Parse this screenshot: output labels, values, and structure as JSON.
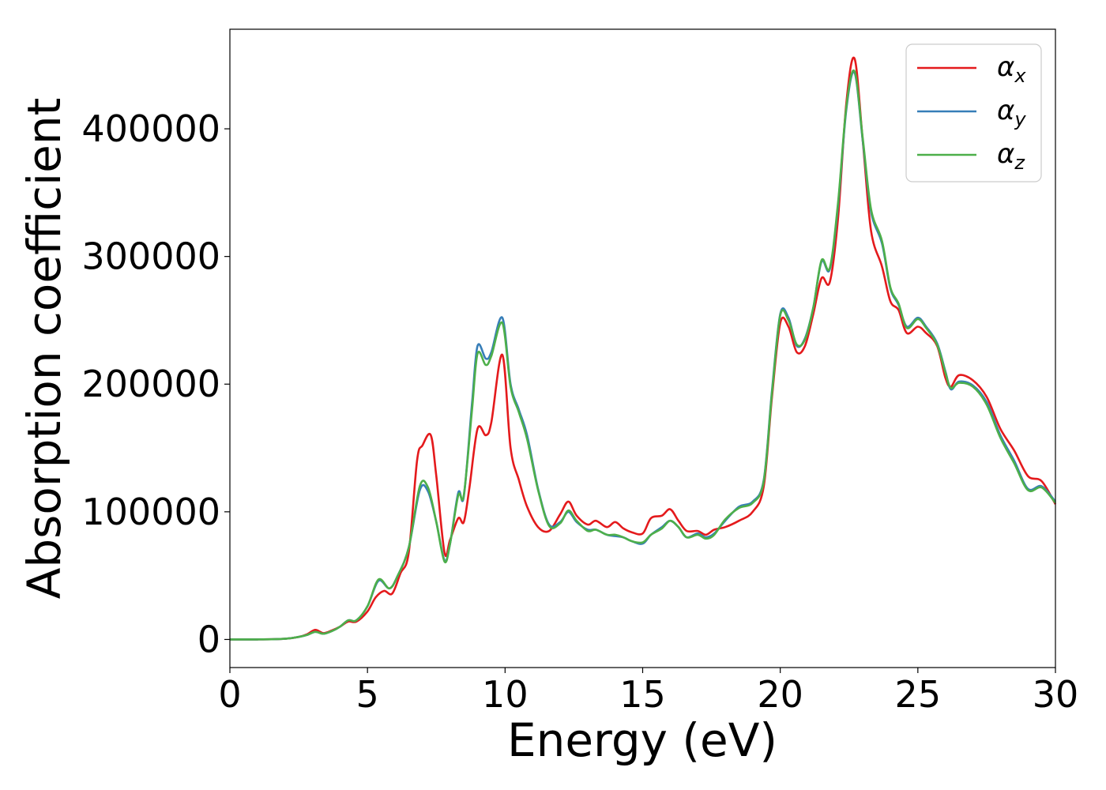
{
  "chart_data": {
    "type": "line",
    "title": "",
    "xlabel": "Energy (eV)",
    "ylabel": "Absorption coefficient",
    "xlim": [
      0,
      30
    ],
    "ylim": [
      -22000,
      478000
    ],
    "xticks": [
      0,
      5,
      10,
      15,
      20,
      25,
      30
    ],
    "xtick_labels": [
      "0",
      "5",
      "10",
      "15",
      "20",
      "25",
      "30"
    ],
    "yticks": [
      0,
      100000,
      200000,
      300000,
      400000
    ],
    "ytick_labels": [
      "0",
      "100000",
      "200000",
      "300000",
      "400000"
    ],
    "grid": false,
    "legend_position": "top-right",
    "series": [
      {
        "name": "αx",
        "label_main": "α",
        "label_sub": "x",
        "color": "#e41a1c",
        "x": [
          0,
          1,
          2,
          2.5,
          2.8,
          3.1,
          3.4,
          3.7,
          4.0,
          4.3,
          4.6,
          5.0,
          5.3,
          5.6,
          5.9,
          6.2,
          6.5,
          6.8,
          7.0,
          7.3,
          7.5,
          7.8,
          8.0,
          8.3,
          8.5,
          8.7,
          9.0,
          9.3,
          9.5,
          9.9,
          10.2,
          10.5,
          10.8,
          11.2,
          11.6,
          12.0,
          12.3,
          12.6,
          13.0,
          13.3,
          13.7,
          14.0,
          14.3,
          14.6,
          15.0,
          15.3,
          15.7,
          16.0,
          16.3,
          16.6,
          17.0,
          17.3,
          17.6,
          18.0,
          18.5,
          19.0,
          19.4,
          19.7,
          20.0,
          20.3,
          20.6,
          20.9,
          21.2,
          21.5,
          21.8,
          22.1,
          22.4,
          22.7,
          23.0,
          23.3,
          23.7,
          24.0,
          24.3,
          24.6,
          25.0,
          25.3,
          25.7,
          26.0,
          26.2,
          26.5,
          27.0,
          27.5,
          28.0,
          28.5,
          29.0,
          29.5,
          30.0
        ],
        "y": [
          0,
          0,
          500,
          2000,
          4000,
          7500,
          5000,
          7000,
          10000,
          14000,
          14000,
          22000,
          33000,
          38000,
          36000,
          52000,
          68000,
          140000,
          152000,
          160000,
          128000,
          68000,
          78000,
          95000,
          92000,
          118000,
          165000,
          160000,
          170000,
          223000,
          150000,
          125000,
          104000,
          88000,
          85000,
          98000,
          108000,
          97000,
          90000,
          93000,
          88000,
          92000,
          87000,
          84000,
          83000,
          95000,
          97000,
          102000,
          93000,
          85000,
          85000,
          82000,
          86000,
          88000,
          93000,
          100000,
          120000,
          190000,
          248000,
          245000,
          225000,
          230000,
          255000,
          283000,
          280000,
          330000,
          420000,
          455000,
          390000,
          320000,
          292000,
          265000,
          258000,
          240000,
          245000,
          240000,
          230000,
          205000,
          198000,
          207000,
          203000,
          190000,
          165000,
          148000,
          128000,
          124000,
          106000
        ]
      },
      {
        "name": "αy",
        "label_main": "α",
        "label_sub": "y",
        "color": "#377eb8",
        "x": [
          0,
          1,
          2,
          2.5,
          2.8,
          3.1,
          3.4,
          3.7,
          4.0,
          4.3,
          4.6,
          5.0,
          5.4,
          5.8,
          6.1,
          6.5,
          6.9,
          7.2,
          7.5,
          7.8,
          8.0,
          8.3,
          8.5,
          8.8,
          9.0,
          9.3,
          9.5,
          9.9,
          10.2,
          10.5,
          10.8,
          11.2,
          11.6,
          12.0,
          12.3,
          12.6,
          13.0,
          13.3,
          13.7,
          14.0,
          14.3,
          14.6,
          15.0,
          15.3,
          15.7,
          16.0,
          16.3,
          16.6,
          17.0,
          17.3,
          17.6,
          18.0,
          18.5,
          19.0,
          19.4,
          19.7,
          20.0,
          20.3,
          20.6,
          20.9,
          21.2,
          21.5,
          21.8,
          22.1,
          22.4,
          22.7,
          23.0,
          23.3,
          23.7,
          24.0,
          24.3,
          24.6,
          25.0,
          25.3,
          25.7,
          26.0,
          26.2,
          26.5,
          27.0,
          27.5,
          28.0,
          28.5,
          29.0,
          29.5,
          30.0
        ],
        "y": [
          0,
          0,
          500,
          2000,
          3500,
          6000,
          4500,
          6500,
          10000,
          15000,
          15000,
          26000,
          46000,
          40000,
          50000,
          72000,
          117000,
          116000,
          92000,
          62000,
          75000,
          115000,
          112000,
          185000,
          230000,
          220000,
          225000,
          252000,
          200000,
          180000,
          160000,
          118000,
          90000,
          92000,
          100000,
          92000,
          86000,
          86000,
          82000,
          81000,
          80000,
          77000,
          75000,
          82000,
          88000,
          93000,
          88000,
          80000,
          83000,
          80000,
          83000,
          93000,
          104000,
          108000,
          125000,
          195000,
          255000,
          252000,
          230000,
          236000,
          260000,
          296000,
          290000,
          340000,
          415000,
          444000,
          390000,
          335000,
          310000,
          275000,
          262000,
          245000,
          252000,
          245000,
          232000,
          210000,
          196000,
          202000,
          199000,
          186000,
          160000,
          140000,
          118000,
          120000,
          108000
        ]
      },
      {
        "name": "αz",
        "label_main": "α",
        "label_sub": "z",
        "color": "#4daf4a",
        "x": [
          0,
          1,
          2,
          2.5,
          2.8,
          3.1,
          3.4,
          3.7,
          4.0,
          4.3,
          4.6,
          5.0,
          5.4,
          5.8,
          6.1,
          6.5,
          6.9,
          7.2,
          7.5,
          7.8,
          8.0,
          8.3,
          8.5,
          8.8,
          9.0,
          9.3,
          9.5,
          9.9,
          10.2,
          10.5,
          10.8,
          11.2,
          11.6,
          12.0,
          12.3,
          12.6,
          13.0,
          13.3,
          13.7,
          14.0,
          14.3,
          14.6,
          15.0,
          15.3,
          15.7,
          16.0,
          16.3,
          16.6,
          17.0,
          17.3,
          17.6,
          18.0,
          18.5,
          19.0,
          19.4,
          19.7,
          20.0,
          20.3,
          20.6,
          20.9,
          21.2,
          21.5,
          21.8,
          22.1,
          22.4,
          22.7,
          23.0,
          23.3,
          23.7,
          24.0,
          24.3,
          24.6,
          25.0,
          25.3,
          25.7,
          26.0,
          26.2,
          26.5,
          27.0,
          27.5,
          28.0,
          28.5,
          29.0,
          29.5,
          30.0
        ],
        "y": [
          0,
          0,
          500,
          2000,
          3500,
          6000,
          4500,
          6500,
          10000,
          15000,
          15000,
          26000,
          47000,
          40000,
          50000,
          72000,
          120000,
          119000,
          92000,
          61000,
          75000,
          113000,
          113000,
          180000,
          224000,
          215000,
          222000,
          248000,
          198000,
          178000,
          157000,
          117000,
          89000,
          91000,
          101000,
          93000,
          85000,
          86000,
          82000,
          82000,
          80000,
          77000,
          76000,
          82000,
          87000,
          93000,
          88000,
          80000,
          82000,
          79000,
          82000,
          94000,
          103000,
          107000,
          124000,
          193000,
          254000,
          250000,
          231000,
          235000,
          260000,
          297000,
          291000,
          342000,
          417000,
          445000,
          392000,
          337000,
          312000,
          276000,
          263000,
          244000,
          251000,
          244000,
          231000,
          209000,
          197000,
          201000,
          198000,
          184000,
          158000,
          138000,
          117000,
          119000,
          107000
        ]
      }
    ]
  }
}
